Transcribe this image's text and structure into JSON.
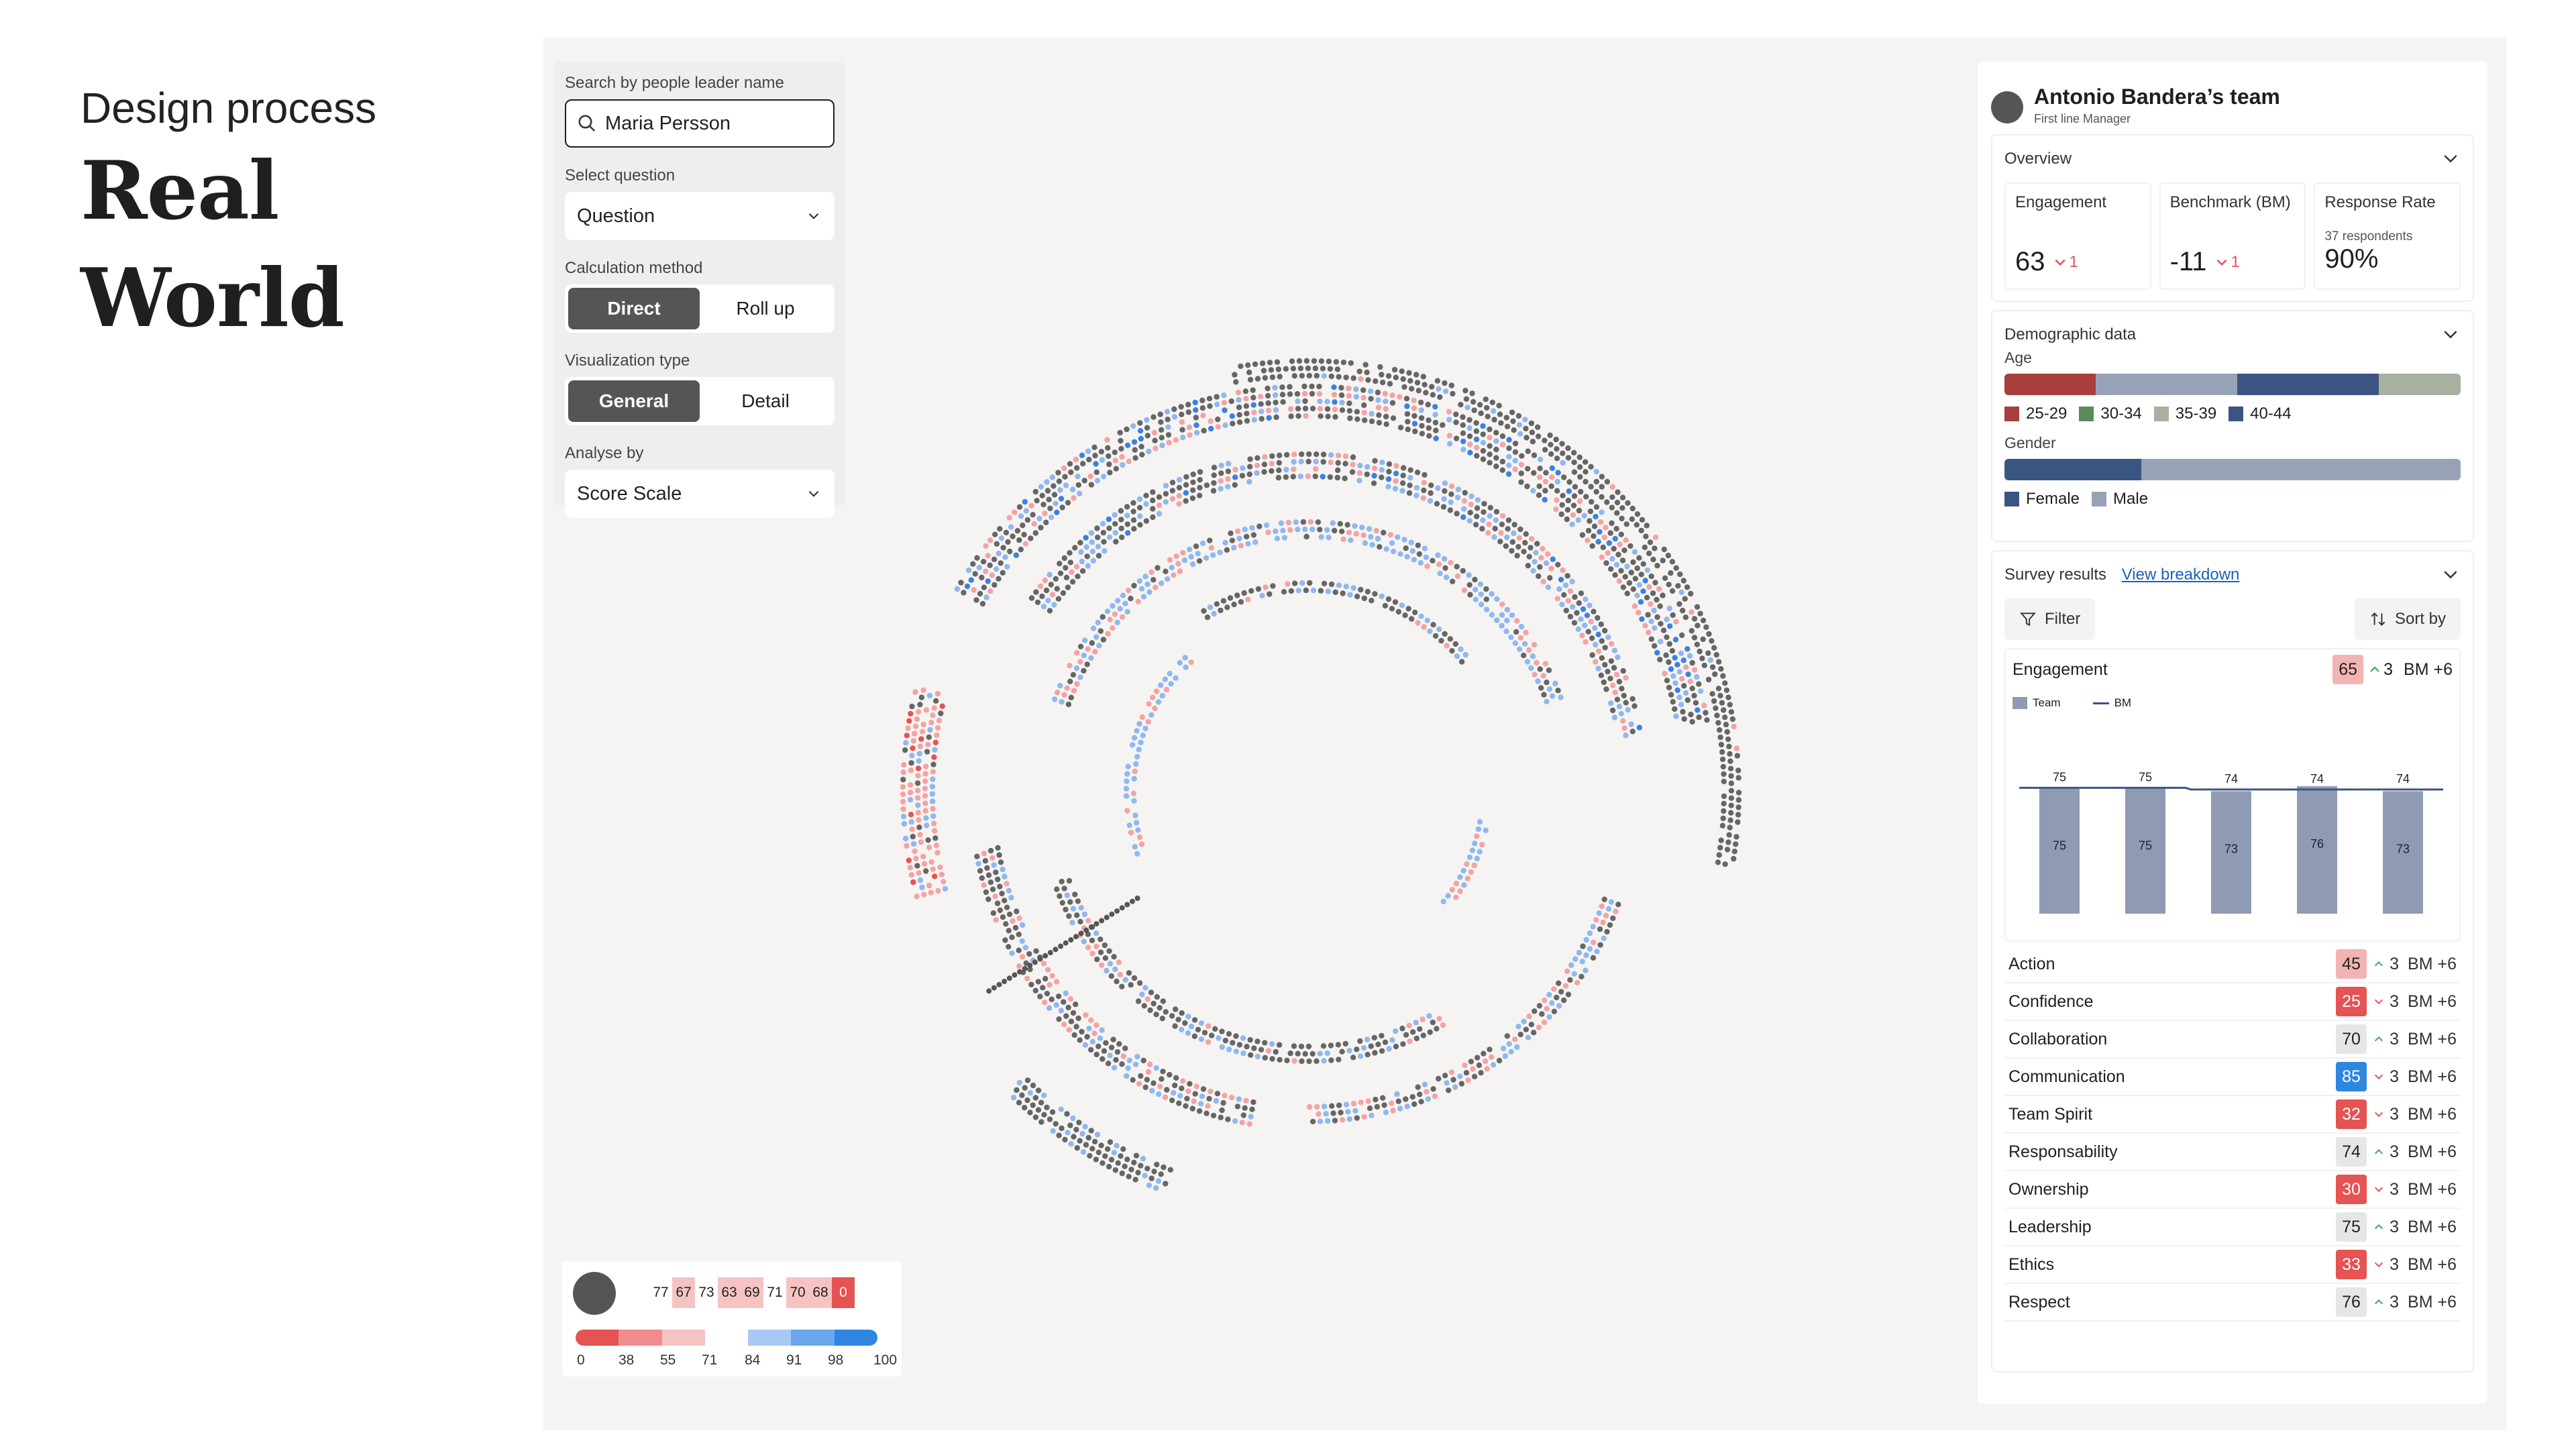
{
  "heading": {
    "subtitle": "Design process",
    "title_line1": "Real",
    "title_line2": "World"
  },
  "controls": {
    "search_label": "Search by people leader name",
    "search_value": "Maria Persson",
    "question_label": "Select question",
    "question_value": "Question",
    "calc_label": "Calculation method",
    "calc_options": [
      "Direct",
      "Roll up"
    ],
    "calc_selected": "Direct",
    "viz_label": "Visualization type",
    "viz_options": [
      "General",
      "Detail"
    ],
    "viz_selected": "General",
    "analyse_label": "Analyse by",
    "analyse_value": "Score Scale"
  },
  "legend": {
    "scores": [
      "77",
      "67",
      "73",
      "63",
      "69",
      "71",
      "70",
      "68",
      "0"
    ],
    "scale": [
      "0",
      "38",
      "55",
      "71",
      "84",
      "91",
      "98",
      "100"
    ]
  },
  "team": {
    "title": "Antonio Bandera’s team",
    "role": "First line Manager"
  },
  "overview": {
    "label": "Overview",
    "engagement_label": "Engagement",
    "engagement_value": "63",
    "engagement_delta": "1",
    "benchmark_label": "Benchmark (BM)",
    "benchmark_value": "-11",
    "benchmark_delta": "1",
    "response_label": "Response Rate",
    "respondents": "37 respondents",
    "response_value": "90%"
  },
  "demographic": {
    "label": "Demographic data",
    "age_label": "Age",
    "gender_label": "Gender",
    "age_legend": [
      "25-29",
      "30-34",
      "35-39",
      "40-44"
    ],
    "gender_legend": [
      "Female",
      "Male"
    ],
    "age_shares": [
      0.2,
      0.31,
      0.31,
      0.18
    ],
    "gender_shares": [
      0.3,
      0.7
    ]
  },
  "survey": {
    "label": "Survey results",
    "link": "View breakdown",
    "filter": "Filter",
    "sort": "Sort by",
    "engagement_label": "Engagement",
    "engagement_score": "65",
    "engagement_trend": "3",
    "engagement_bm": "BM +6",
    "chart_legend_team": "Team",
    "chart_legend_bm": "BM",
    "metrics": [
      {
        "name": "Action",
        "score": "45",
        "trend": "3",
        "bm": "BM +6",
        "up": true,
        "color": "#f3b3b3"
      },
      {
        "name": "Confidence",
        "score": "25",
        "trend": "3",
        "bm": "BM +6",
        "up": false,
        "color": "#e55353"
      },
      {
        "name": "Collaboration",
        "score": "70",
        "trend": "3",
        "bm": "BM +6",
        "up": true,
        "color": "#e6e6e6"
      },
      {
        "name": "Communication",
        "score": "85",
        "trend": "3",
        "bm": "BM +6",
        "up": false,
        "color": "#2f86e0"
      },
      {
        "name": "Team Spirit",
        "score": "32",
        "trend": "3",
        "bm": "BM +6",
        "up": false,
        "color": "#e55353"
      },
      {
        "name": "Responsability",
        "score": "74",
        "trend": "3",
        "bm": "BM +6",
        "up": true,
        "color": "#e6e6e6"
      },
      {
        "name": "Ownership",
        "score": "30",
        "trend": "3",
        "bm": "BM +6",
        "up": false,
        "color": "#e55353"
      },
      {
        "name": "Leadership",
        "score": "75",
        "trend": "3",
        "bm": "BM +6",
        "up": true,
        "color": "#e6e6e6"
      },
      {
        "name": "Ethics",
        "score": "33",
        "trend": "3",
        "bm": "BM +6",
        "up": false,
        "color": "#e55353"
      },
      {
        "name": "Respect",
        "score": "76",
        "trend": "3",
        "bm": "BM +6",
        "up": true,
        "color": "#e6e6e6"
      }
    ]
  },
  "chart_data": {
    "type": "bar",
    "categories": [
      "",
      "",
      "",
      "",
      ""
    ],
    "series": [
      {
        "name": "Team",
        "values": [
          75,
          75,
          73,
          76,
          73
        ]
      },
      {
        "name": "BM",
        "values": [
          75,
          75,
          74,
          74,
          74
        ]
      }
    ]
  },
  "colors": {
    "accent": "#555555",
    "red": "#e55353",
    "blue": "#2f86e0",
    "bar": "#8e9bb3",
    "age": [
      "#a83e3e",
      "#98a2b7",
      "#3b5582",
      "#a8b0a0"
    ],
    "gender": [
      "#3b5582",
      "#98a2b7"
    ]
  }
}
